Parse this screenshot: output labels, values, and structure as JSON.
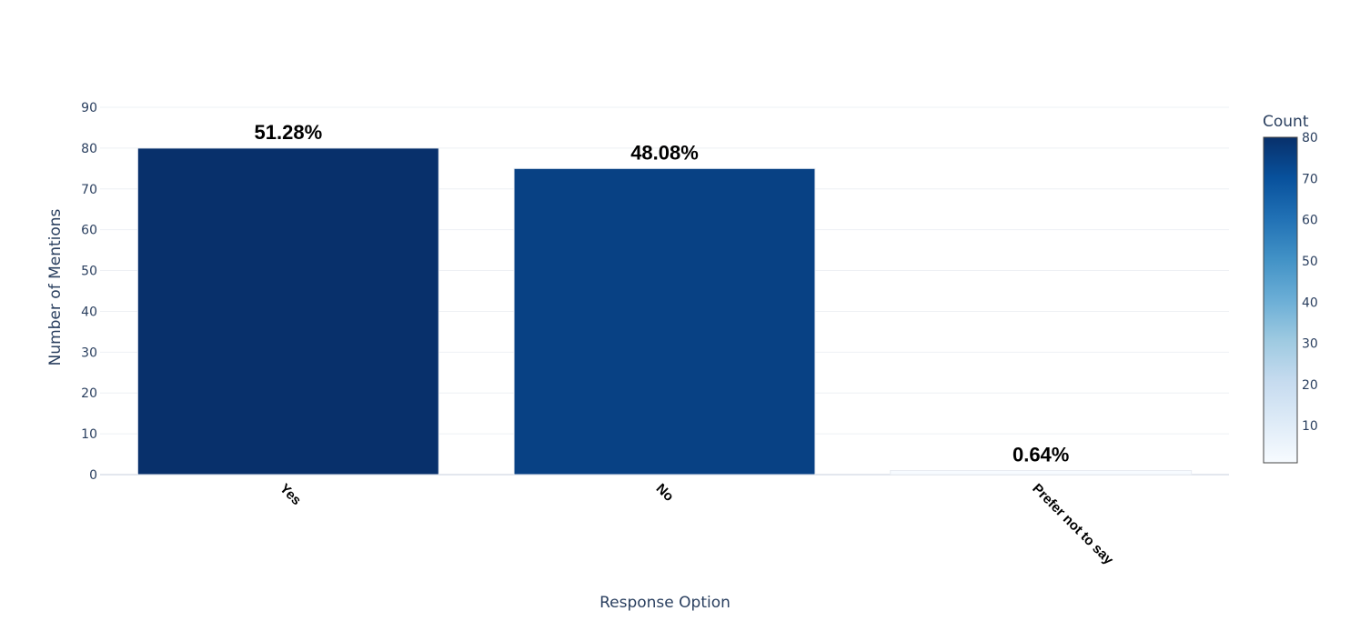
{
  "chart_data": {
    "type": "bar",
    "categories": [
      "Yes",
      "No",
      "Prefer not to say"
    ],
    "values": [
      80,
      75,
      1
    ],
    "data_labels": [
      "51.28%",
      "48.08%",
      "0.64%"
    ],
    "title": "",
    "xlabel": "Response Option",
    "ylabel": "Number of Mentions",
    "ylim": [
      0,
      90
    ],
    "yticks": [
      0,
      10,
      20,
      30,
      40,
      50,
      60,
      70,
      80,
      90
    ],
    "grid": true,
    "colorbar": {
      "title": "Count",
      "range": [
        1,
        80
      ],
      "ticks": [
        10,
        20,
        30,
        40,
        50,
        60,
        70,
        80
      ],
      "colorscale": [
        "#f7fbff",
        "#deebf7",
        "#c6dbef",
        "#9ecae1",
        "#6baed6",
        "#4292c6",
        "#2171b5",
        "#08519c",
        "#08306b"
      ]
    }
  }
}
